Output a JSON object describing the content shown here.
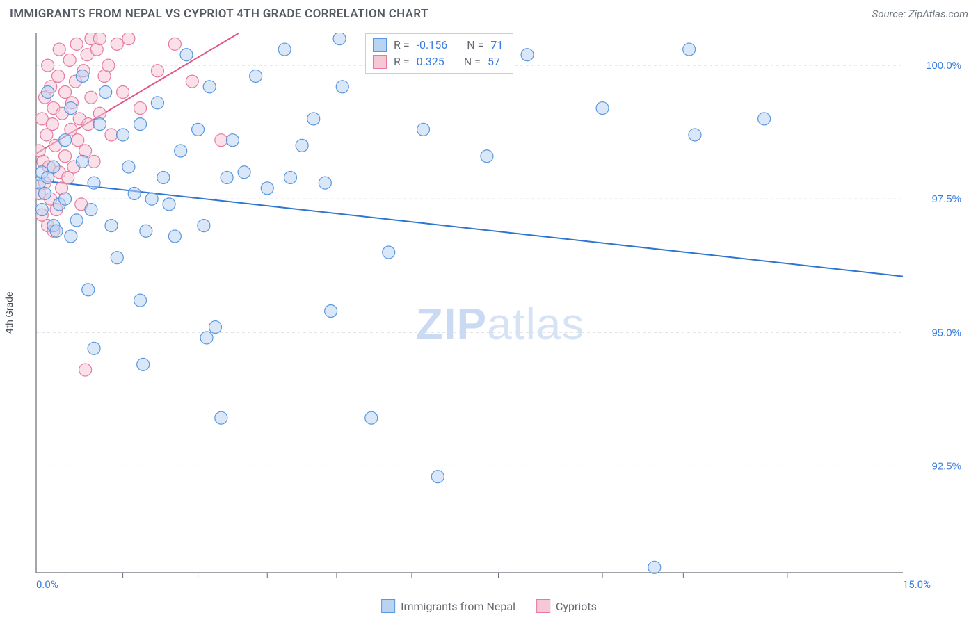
{
  "header": {
    "title": "IMMIGRANTS FROM NEPAL VS CYPRIOT 4TH GRADE CORRELATION CHART",
    "source": "Source: ZipAtlas.com"
  },
  "watermark": {
    "bold": "ZIP",
    "light": "atlas"
  },
  "chart": {
    "type": "scatter",
    "y_axis_label": "4th Grade",
    "xlim": [
      0.0,
      15.0
    ],
    "ylim": [
      90.5,
      100.6
    ],
    "x_min_label": "0.0%",
    "x_max_label": "15.0%",
    "ytick_values": [
      92.5,
      95.0,
      97.5,
      100.0
    ],
    "ytick_labels": [
      "92.5%",
      "95.0%",
      "97.5%",
      "100.0%"
    ],
    "grid_color": "#d9dde2",
    "axis_color": "#666c74",
    "tick_color": "#666c74",
    "background_color": "#ffffff",
    "marker_outline_width": 1.2,
    "marker_radius": 9,
    "marker_opacity": 0.55,
    "series": [
      {
        "name": "Immigrants from Nepal",
        "fill": "#b9d4f3",
        "stroke": "#5a97df",
        "R_label": "R = ",
        "R": "-0.156",
        "N_label": "N = ",
        "N": "71",
        "trend": {
          "x1": 0.0,
          "y1": 97.85,
          "x2": 15.0,
          "y2": 96.05,
          "color": "#2f74d0",
          "width": 2
        },
        "points": [
          [
            0.05,
            97.8
          ],
          [
            0.1,
            98.0
          ],
          [
            0.1,
            97.3
          ],
          [
            0.15,
            97.6
          ],
          [
            0.2,
            97.9
          ],
          [
            0.2,
            99.5
          ],
          [
            0.3,
            98.1
          ],
          [
            0.3,
            97.0
          ],
          [
            0.35,
            96.9
          ],
          [
            0.4,
            97.4
          ],
          [
            0.5,
            98.6
          ],
          [
            0.5,
            97.5
          ],
          [
            0.6,
            99.2
          ],
          [
            0.6,
            96.8
          ],
          [
            0.7,
            97.1
          ],
          [
            0.8,
            99.8
          ],
          [
            0.8,
            98.2
          ],
          [
            0.9,
            95.8
          ],
          [
            0.95,
            97.3
          ],
          [
            1.0,
            94.7
          ],
          [
            1.0,
            97.8
          ],
          [
            1.1,
            98.9
          ],
          [
            1.2,
            99.5
          ],
          [
            1.3,
            97.0
          ],
          [
            1.4,
            96.4
          ],
          [
            1.5,
            98.7
          ],
          [
            1.6,
            98.1
          ],
          [
            1.7,
            97.6
          ],
          [
            1.8,
            95.6
          ],
          [
            1.8,
            98.9
          ],
          [
            1.85,
            94.4
          ],
          [
            1.9,
            96.9
          ],
          [
            2.0,
            97.5
          ],
          [
            2.1,
            99.3
          ],
          [
            2.2,
            97.9
          ],
          [
            2.3,
            97.4
          ],
          [
            2.4,
            96.8
          ],
          [
            2.5,
            98.4
          ],
          [
            2.6,
            100.2
          ],
          [
            2.8,
            98.8
          ],
          [
            2.9,
            97.0
          ],
          [
            2.95,
            94.9
          ],
          [
            3.0,
            99.6
          ],
          [
            3.1,
            95.1
          ],
          [
            3.2,
            93.4
          ],
          [
            3.3,
            97.9
          ],
          [
            3.4,
            98.6
          ],
          [
            3.6,
            98.0
          ],
          [
            3.8,
            99.8
          ],
          [
            4.0,
            97.7
          ],
          [
            4.3,
            100.3
          ],
          [
            4.4,
            97.9
          ],
          [
            4.6,
            98.5
          ],
          [
            4.8,
            99.0
          ],
          [
            5.0,
            97.8
          ],
          [
            5.1,
            95.4
          ],
          [
            5.3,
            99.6
          ],
          [
            5.25,
            100.5
          ],
          [
            5.8,
            93.4
          ],
          [
            6.0,
            100.4
          ],
          [
            6.1,
            96.5
          ],
          [
            6.3,
            100.2
          ],
          [
            6.7,
            98.8
          ],
          [
            6.95,
            92.3
          ],
          [
            7.8,
            98.3
          ],
          [
            8.5,
            100.2
          ],
          [
            9.8,
            99.2
          ],
          [
            10.7,
            90.6
          ],
          [
            11.3,
            100.3
          ],
          [
            11.4,
            98.7
          ],
          [
            12.6,
            99.0
          ]
        ]
      },
      {
        "name": "Cypriots",
        "fill": "#f6c7d5",
        "stroke": "#e77aa0",
        "R_label": "R = ",
        "R": "0.325",
        "N_label": "N = ",
        "N": "57",
        "trend": {
          "x1": 0.0,
          "y1": 98.35,
          "x2": 3.5,
          "y2": 100.6,
          "color": "#e25588",
          "width": 2
        },
        "points": [
          [
            0.05,
            98.4
          ],
          [
            0.05,
            97.6
          ],
          [
            0.1,
            99.0
          ],
          [
            0.1,
            97.2
          ],
          [
            0.12,
            98.2
          ],
          [
            0.15,
            99.4
          ],
          [
            0.15,
            97.8
          ],
          [
            0.18,
            98.7
          ],
          [
            0.2,
            100.0
          ],
          [
            0.2,
            97.0
          ],
          [
            0.22,
            98.1
          ],
          [
            0.25,
            99.6
          ],
          [
            0.25,
            97.5
          ],
          [
            0.28,
            98.9
          ],
          [
            0.3,
            99.2
          ],
          [
            0.3,
            96.9
          ],
          [
            0.33,
            98.5
          ],
          [
            0.35,
            97.3
          ],
          [
            0.38,
            99.8
          ],
          [
            0.4,
            98.0
          ],
          [
            0.4,
            100.3
          ],
          [
            0.44,
            97.7
          ],
          [
            0.45,
            99.1
          ],
          [
            0.5,
            98.3
          ],
          [
            0.5,
            99.5
          ],
          [
            0.55,
            97.9
          ],
          [
            0.58,
            100.1
          ],
          [
            0.6,
            98.8
          ],
          [
            0.62,
            99.3
          ],
          [
            0.65,
            98.1
          ],
          [
            0.68,
            99.7
          ],
          [
            0.7,
            100.4
          ],
          [
            0.72,
            98.6
          ],
          [
            0.75,
            99.0
          ],
          [
            0.78,
            97.4
          ],
          [
            0.82,
            99.9
          ],
          [
            0.85,
            98.4
          ],
          [
            0.85,
            94.3
          ],
          [
            0.88,
            100.2
          ],
          [
            0.9,
            98.9
          ],
          [
            0.95,
            99.4
          ],
          [
            0.95,
            100.5
          ],
          [
            1.0,
            98.2
          ],
          [
            1.05,
            100.3
          ],
          [
            1.1,
            99.1
          ],
          [
            1.1,
            100.5
          ],
          [
            1.18,
            99.8
          ],
          [
            1.25,
            100.0
          ],
          [
            1.3,
            98.7
          ],
          [
            1.4,
            100.4
          ],
          [
            1.5,
            99.5
          ],
          [
            1.6,
            100.5
          ],
          [
            1.8,
            99.2
          ],
          [
            2.1,
            99.9
          ],
          [
            2.4,
            100.4
          ],
          [
            2.7,
            99.7
          ],
          [
            3.2,
            98.6
          ]
        ]
      }
    ],
    "legend": {
      "items": [
        {
          "label": "Immigrants from Nepal",
          "fill": "#b9d4f3",
          "stroke": "#5a97df"
        },
        {
          "label": "Cypriots",
          "fill": "#f6c7d5",
          "stroke": "#e77aa0"
        }
      ]
    }
  }
}
